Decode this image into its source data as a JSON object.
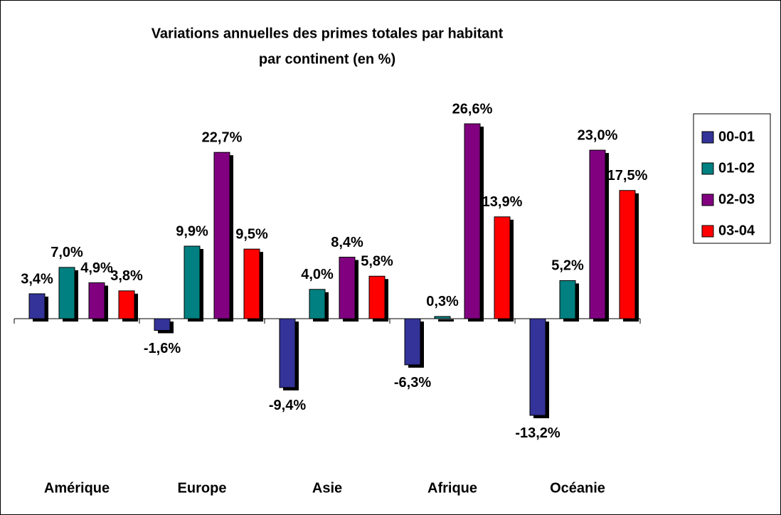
{
  "chart_data": {
    "type": "bar",
    "title": [
      "Variations annuelles des primes totales par habitant",
      "par continent (en %)"
    ],
    "categories": [
      "Amérique",
      "Europe",
      "Asie",
      "Afrique",
      "Océanie"
    ],
    "series": [
      {
        "name": "00-01",
        "color": "#333399",
        "values": [
          3.4,
          -1.6,
          -9.4,
          -6.3,
          -13.2
        ],
        "value_labels": [
          "3,4%",
          "-1,6%",
          "-9,4%",
          "-6,3%",
          "-13,2%"
        ]
      },
      {
        "name": "01-02",
        "color": "#008080",
        "values": [
          7.0,
          9.9,
          4.0,
          0.3,
          5.2
        ],
        "value_labels": [
          "7,0%",
          "9,9%",
          "4,0%",
          "0,3%",
          "5,2%"
        ]
      },
      {
        "name": "02-03",
        "color": "#800080",
        "values": [
          4.9,
          22.7,
          8.4,
          26.6,
          23.0
        ],
        "value_labels": [
          "4,9%",
          "22,7%",
          "8,4%",
          "26,6%",
          "23,0%"
        ]
      },
      {
        "name": "03-04",
        "color": "#ff0000",
        "values": [
          3.8,
          9.5,
          5.8,
          13.9,
          17.5
        ],
        "value_labels": [
          "3,8%",
          "9,5%",
          "5,8%",
          "13,9%",
          "17,5%"
        ]
      }
    ],
    "ylim": [
      -20,
      30
    ],
    "legend": "right"
  }
}
